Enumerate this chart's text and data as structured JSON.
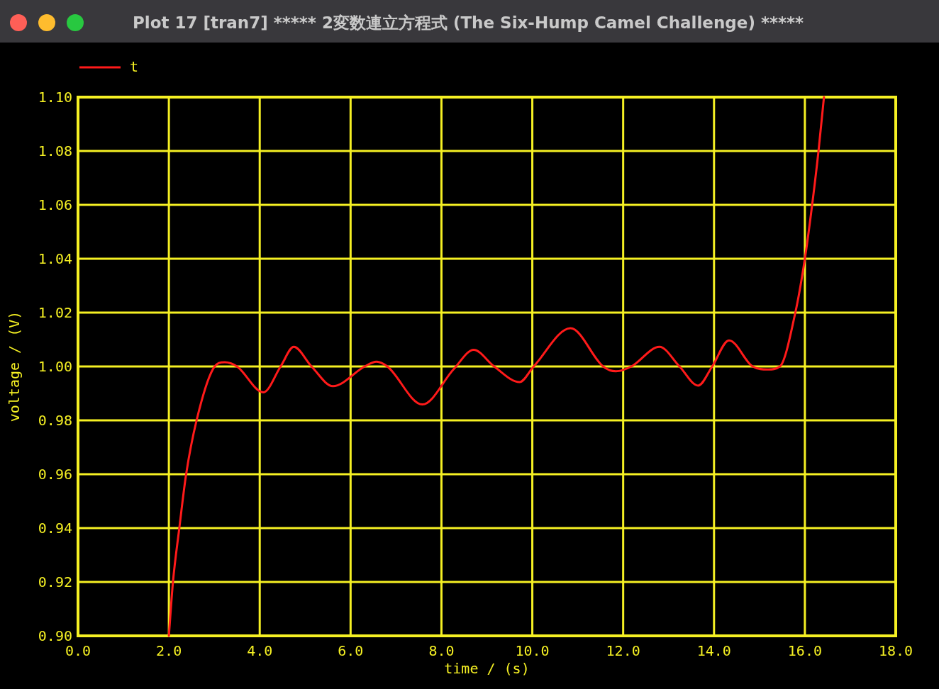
{
  "chart_data": {
    "type": "line",
    "title": "Plot 17 [tran7] ***** 2変数連立方程式 (The Six-Hump Camel Challenge) *****",
    "xlabel": "time / (s)",
    "ylabel": "voltage / (V)",
    "x": [
      2.0,
      2.09,
      2.23,
      2.38,
      2.61,
      2.97,
      3.23,
      3.5,
      4.08,
      4.46,
      4.75,
      5.14,
      5.61,
      6.31,
      6.57,
      6.81,
      7.58,
      8.27,
      8.71,
      9.16,
      9.72,
      10.03,
      10.84,
      11.56,
      11.84,
      12.18,
      12.8,
      13.24,
      13.65,
      13.96,
      14.33,
      14.85,
      15.19,
      15.45,
      15.79,
      16.0,
      16.16,
      16.3,
      16.42
    ],
    "series": [
      {
        "name": "t",
        "color": "#ff1a1a",
        "values": [
          0.9,
          0.92,
          0.94,
          0.96,
          0.98,
          0.999,
          1.0016,
          1.0,
          0.9904,
          1.0,
          1.0073,
          1.0,
          0.9927,
          1.0,
          1.0018,
          1.0,
          0.9859,
          0.999,
          1.0062,
          1.0,
          0.9942,
          1.0,
          1.0142,
          1.0,
          0.9982,
          1.0,
          1.0073,
          1.0,
          0.9929,
          1.0,
          1.0097,
          1.0,
          0.9989,
          1.0,
          1.02,
          1.04,
          1.06,
          1.08,
          1.1
        ]
      }
    ],
    "xlim": [
      0,
      18
    ],
    "ylim": [
      0.9,
      1.1
    ],
    "xticks": [
      {
        "value": 0,
        "label": "0.0"
      },
      {
        "value": 2,
        "label": "2.0"
      },
      {
        "value": 4,
        "label": "4.0"
      },
      {
        "value": 6,
        "label": "6.0"
      },
      {
        "value": 8,
        "label": "8.0"
      },
      {
        "value": 10,
        "label": "10.0"
      },
      {
        "value": 12,
        "label": "12.0"
      },
      {
        "value": 14,
        "label": "14.0"
      },
      {
        "value": 16,
        "label": "16.0"
      },
      {
        "value": 18,
        "label": "18.0"
      }
    ],
    "yticks": [
      {
        "value": 0.9,
        "label": "0.90"
      },
      {
        "value": 0.92,
        "label": "0.92"
      },
      {
        "value": 0.94,
        "label": "0.94"
      },
      {
        "value": 0.96,
        "label": "0.96"
      },
      {
        "value": 0.98,
        "label": "0.98"
      },
      {
        "value": 1.0,
        "label": "1.00"
      },
      {
        "value": 1.02,
        "label": "1.02"
      },
      {
        "value": 1.04,
        "label": "1.04"
      },
      {
        "value": 1.06,
        "label": "1.06"
      },
      {
        "value": 1.08,
        "label": "1.08"
      },
      {
        "value": 1.1,
        "label": "1.10"
      }
    ],
    "grid": true,
    "legend": "top left",
    "line_style": "solid"
  }
}
